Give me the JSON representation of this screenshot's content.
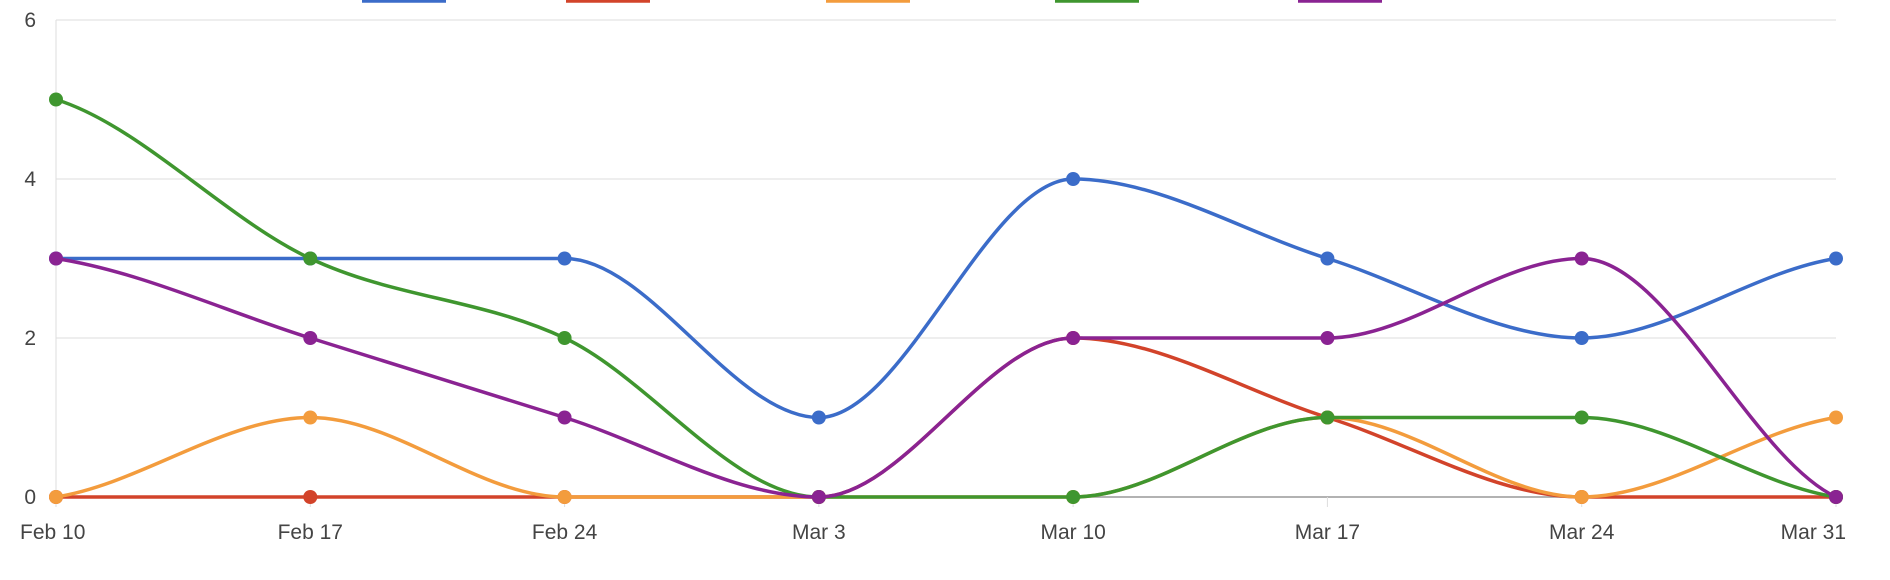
{
  "chart_data": {
    "type": "line",
    "title": "",
    "xlabel": "",
    "ylabel": "",
    "categories": [
      "Feb 10",
      "Feb 17",
      "Feb 24",
      "Mar 3",
      "Mar 10",
      "Mar 17",
      "Mar 24",
      "Mar 31"
    ],
    "y_ticks": [
      "0",
      "2",
      "4",
      "6"
    ],
    "ylim": [
      0,
      6
    ],
    "grid": true,
    "legend": "top",
    "smooth": true,
    "series": [
      {
        "name": "",
        "color": "#3b6cc9",
        "values": [
          3,
          3,
          3,
          1,
          4,
          3,
          2,
          3
        ]
      },
      {
        "name": "",
        "color": "#d2432a",
        "values": [
          0,
          0,
          0,
          0,
          2,
          1,
          0,
          0
        ]
      },
      {
        "name": "",
        "color": "#f39c3d",
        "values": [
          0,
          1,
          0,
          0,
          0,
          1,
          0,
          1
        ]
      },
      {
        "name": "",
        "color": "#3f962f",
        "values": [
          5,
          3,
          2,
          0,
          0,
          1,
          1,
          0
        ]
      },
      {
        "name": "",
        "color": "#8a2392",
        "values": [
          3,
          2,
          1,
          0,
          2,
          2,
          3,
          0
        ]
      }
    ]
  }
}
